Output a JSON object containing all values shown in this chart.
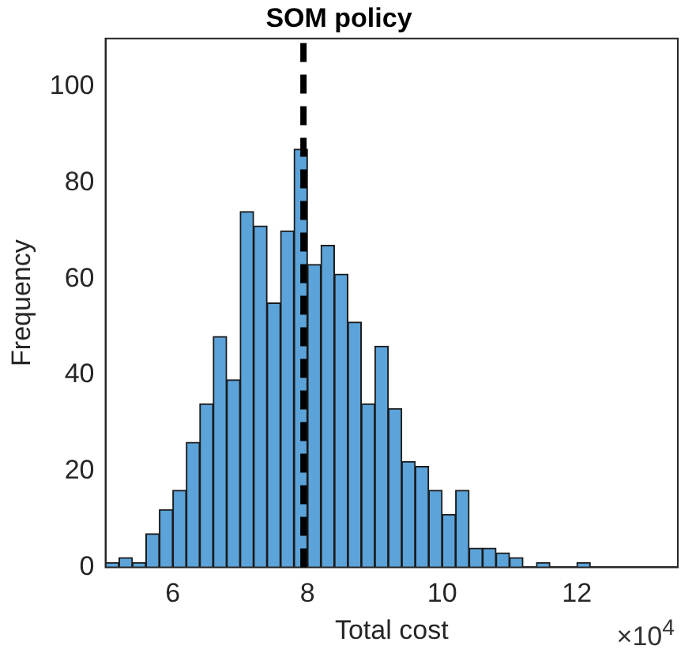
{
  "chart_data": {
    "type": "histogram",
    "title": "SOM policy",
    "xlabel": "Total cost",
    "ylabel": "Frequency",
    "bins": [
      5.0,
      5.2,
      5.4,
      5.6,
      5.8,
      6.0,
      6.2,
      6.4,
      6.6,
      6.8,
      7.0,
      7.2,
      7.4,
      7.6,
      7.8,
      8.0,
      8.2,
      8.4,
      8.6,
      8.8,
      9.0,
      9.2,
      9.4,
      9.6,
      9.8,
      10.0,
      10.2,
      10.4,
      10.6,
      10.8,
      11.0,
      11.2,
      11.4,
      11.6,
      11.8,
      12.0,
      12.2
    ],
    "values": [
      1,
      2,
      1,
      7,
      12,
      16,
      26,
      34,
      48,
      39,
      74,
      71,
      55,
      70,
      87,
      63,
      67,
      61,
      51,
      34,
      46,
      33,
      22,
      21,
      16,
      11,
      16,
      4,
      4,
      3,
      2,
      0,
      1,
      0,
      0,
      1
    ],
    "color": "#5ba3d9",
    "xlim": [
      5,
      13.5
    ],
    "xticks": [
      6,
      8,
      10,
      12
    ],
    "ylim": [
      0,
      110
    ],
    "yticks": [
      0,
      20,
      40,
      60,
      80,
      100
    ],
    "ref_lines": [
      {
        "axis": "x",
        "value": 7.94,
        "color": "#000000",
        "line_style": "dashed"
      }
    ],
    "annotations": [
      "×10$^{4}$"
    ],
    "grid": false,
    "legend": false
  }
}
